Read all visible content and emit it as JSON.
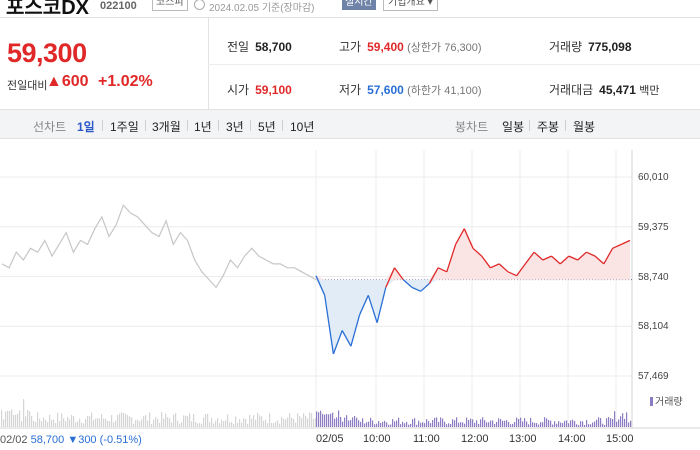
{
  "header": {
    "stock_name": "포스코DX",
    "code": "022100",
    "market": "코스피",
    "timestamp": "2024.02.05 기준(장마감)",
    "realtime_label": "실시간",
    "company_info_label": "기업개요 ▾"
  },
  "summary": {
    "price": "59,300",
    "change_label": "전일대비",
    "change": "▲600",
    "change_pct": "+1.02%",
    "prev_close_label": "전일",
    "prev_close": "58,700",
    "high_label": "고가",
    "high": "59,400",
    "upper_limit": "(상한가 76,300)",
    "volume_label": "거래량",
    "volume": "775,098",
    "open_label": "시가",
    "open": "59,100",
    "low_label": "저가",
    "low": "57,600",
    "lower_limit": "(하한가 41,100)",
    "amount_label": "거래대금",
    "amount": "45,471",
    "amount_unit": "백만"
  },
  "tabs": {
    "line_label": "선차트",
    "periods": [
      "1일",
      "1주일",
      "3개월",
      "1년",
      "3년",
      "5년",
      "10년"
    ],
    "active_period": "1일",
    "candle_label": "봉차트",
    "candles": [
      "일봉",
      "주봉",
      "월봉"
    ]
  },
  "colors": {
    "up": "#e02828",
    "down": "#2a6fd6",
    "volume": "#8c7cc2",
    "up_fill": "#fbe4e4",
    "down_fill": "#e2ecf7"
  },
  "chart_data": {
    "type": "line",
    "y_ticks": [
      "60,010",
      "59,375",
      "58,740",
      "58,104",
      "57,469"
    ],
    "ylim": [
      57469,
      60010
    ],
    "baseline": 58700,
    "x_labels": [
      "02/05",
      "10:00",
      "11:00",
      "12:00",
      "13:00",
      "14:00",
      "15:00"
    ],
    "prev_day": {
      "label": "02/02",
      "close": "58,700",
      "change": "▼300",
      "change_pct": "(-0.51%)"
    },
    "volume_label": "거래량",
    "prev_day_series": [
      58900,
      58850,
      59050,
      58950,
      59100,
      59050,
      59200,
      59000,
      59150,
      59300,
      59050,
      59200,
      59150,
      59350,
      59500,
      59250,
      59400,
      59650,
      59550,
      59500,
      59400,
      59300,
      59250,
      59450,
      59150,
      59300,
      59200,
      58950,
      58800,
      58700,
      58600,
      58750,
      58950,
      58850,
      59000,
      59100,
      59000,
      58950,
      58900,
      58900,
      58850,
      58850,
      58800,
      58750,
      58700
    ],
    "today_series": [
      58750,
      58500,
      57750,
      58050,
      57850,
      58250,
      58500,
      58150,
      58600,
      58850,
      58700,
      58600,
      58550,
      58650,
      58850,
      58800,
      59150,
      59350,
      59100,
      59000,
      58850,
      58900,
      58800,
      58750,
      58900,
      59050,
      58950,
      59000,
      58900,
      59000,
      58950,
      59050,
      59000,
      58900,
      59100,
      59150,
      59200
    ]
  }
}
